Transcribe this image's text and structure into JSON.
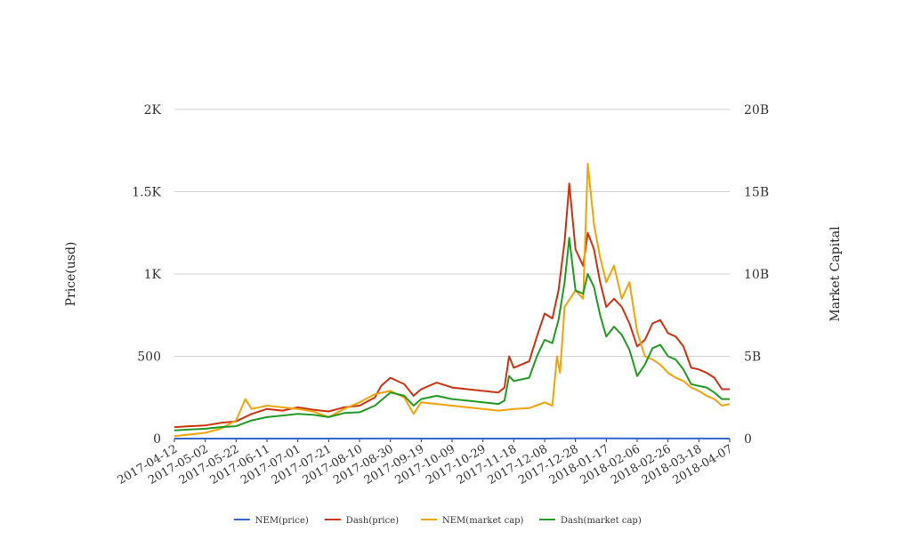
{
  "chart_data": {
    "type": "line",
    "x_labels": [
      "2017-04-12",
      "2017-05-02",
      "2017-05-22",
      "2017-06-11",
      "2017-07-01",
      "2017-07-21",
      "2017-08-10",
      "2017-08-30",
      "2017-09-19",
      "2017-10-09",
      "2017-10-29",
      "2017-11-18",
      "2017-12-08",
      "2017-12-28",
      "2018-01-17",
      "2018-02-06",
      "2018-02-26",
      "2018-03-18",
      "2018-04-07"
    ],
    "y_left": {
      "label": "Price(usd)",
      "min": 0,
      "max": 2000,
      "ticks": [
        0,
        500,
        1000,
        1500,
        2000
      ],
      "tick_labels": [
        "0",
        "500",
        "1K",
        "1.5K",
        "2K"
      ]
    },
    "y_right": {
      "label": "Market Capital",
      "min": 0,
      "max": 20000000000,
      "ticks": [
        0,
        5000000000,
        10000000000,
        15000000000,
        20000000000
      ],
      "tick_labels": [
        "0",
        "5B",
        "10B",
        "15B",
        "20B"
      ]
    },
    "grid": true,
    "legend_position": "bottom",
    "series": [
      {
        "name": "NEM(price)",
        "axis": "left",
        "color": "#3366cc",
        "points": [
          [
            "2017-04-12",
            0.03
          ],
          [
            "2017-05-02",
            0.06
          ],
          [
            "2017-05-22",
            0.18
          ],
          [
            "2017-06-11",
            0.22
          ],
          [
            "2017-07-01",
            0.2
          ],
          [
            "2017-07-21",
            0.15
          ],
          [
            "2017-08-10",
            0.2
          ],
          [
            "2017-08-30",
            0.3
          ],
          [
            "2017-09-19",
            0.2
          ],
          [
            "2017-10-09",
            0.22
          ],
          [
            "2017-10-29",
            0.19
          ],
          [
            "2017-11-18",
            0.2
          ],
          [
            "2017-12-08",
            0.25
          ],
          [
            "2017-12-28",
            1.5
          ],
          [
            "2018-01-04",
            1.8
          ],
          [
            "2018-01-17",
            1.2
          ],
          [
            "2018-02-06",
            0.5
          ],
          [
            "2018-02-26",
            0.4
          ],
          [
            "2018-03-18",
            0.3
          ],
          [
            "2018-04-07",
            0.22
          ]
        ]
      },
      {
        "name": "Dash(price)",
        "axis": "left",
        "color": "#cc3311",
        "points": [
          [
            "2017-04-12",
            70
          ],
          [
            "2017-04-22",
            75
          ],
          [
            "2017-05-02",
            80
          ],
          [
            "2017-05-12",
            95
          ],
          [
            "2017-05-22",
            105
          ],
          [
            "2017-06-01",
            150
          ],
          [
            "2017-06-11",
            180
          ],
          [
            "2017-06-21",
            170
          ],
          [
            "2017-07-01",
            190
          ],
          [
            "2017-07-11",
            175
          ],
          [
            "2017-07-21",
            165
          ],
          [
            "2017-07-31",
            190
          ],
          [
            "2017-08-10",
            200
          ],
          [
            "2017-08-20",
            250
          ],
          [
            "2017-08-24",
            320
          ],
          [
            "2017-08-30",
            370
          ],
          [
            "2017-09-08",
            330
          ],
          [
            "2017-09-14",
            260
          ],
          [
            "2017-09-19",
            300
          ],
          [
            "2017-09-29",
            340
          ],
          [
            "2017-10-09",
            310
          ],
          [
            "2017-10-19",
            300
          ],
          [
            "2017-10-29",
            290
          ],
          [
            "2017-11-08",
            280
          ],
          [
            "2017-11-12",
            310
          ],
          [
            "2017-11-15",
            500
          ],
          [
            "2017-11-18",
            430
          ],
          [
            "2017-11-28",
            470
          ],
          [
            "2017-12-03",
            620
          ],
          [
            "2017-12-08",
            760
          ],
          [
            "2017-12-13",
            730
          ],
          [
            "2017-12-17",
            900
          ],
          [
            "2017-12-21",
            1200
          ],
          [
            "2017-12-24",
            1550
          ],
          [
            "2017-12-28",
            1150
          ],
          [
            "2018-01-02",
            1050
          ],
          [
            "2018-01-05",
            1250
          ],
          [
            "2018-01-09",
            1150
          ],
          [
            "2018-01-13",
            950
          ],
          [
            "2018-01-17",
            800
          ],
          [
            "2018-01-22",
            850
          ],
          [
            "2018-01-27",
            800
          ],
          [
            "2018-02-01",
            700
          ],
          [
            "2018-02-06",
            560
          ],
          [
            "2018-02-11",
            600
          ],
          [
            "2018-02-16",
            700
          ],
          [
            "2018-02-21",
            720
          ],
          [
            "2018-02-26",
            640
          ],
          [
            "2018-03-03",
            620
          ],
          [
            "2018-03-08",
            560
          ],
          [
            "2018-03-13",
            430
          ],
          [
            "2018-03-18",
            420
          ],
          [
            "2018-03-23",
            400
          ],
          [
            "2018-03-28",
            370
          ],
          [
            "2018-04-02",
            300
          ],
          [
            "2018-04-07",
            300
          ]
        ]
      },
      {
        "name": "NEM(market cap)",
        "axis": "right",
        "color": "#f0a30a",
        "points": [
          [
            "2017-04-12",
            150000000
          ],
          [
            "2017-04-22",
            250000000
          ],
          [
            "2017-05-02",
            350000000
          ],
          [
            "2017-05-12",
            600000000
          ],
          [
            "2017-05-22",
            1100000000
          ],
          [
            "2017-05-28",
            2400000000
          ],
          [
            "2017-06-01",
            1800000000
          ],
          [
            "2017-06-11",
            2000000000
          ],
          [
            "2017-06-21",
            1900000000
          ],
          [
            "2017-07-01",
            1800000000
          ],
          [
            "2017-07-11",
            1650000000
          ],
          [
            "2017-07-21",
            1300000000
          ],
          [
            "2017-07-31",
            1800000000
          ],
          [
            "2017-08-10",
            2200000000
          ],
          [
            "2017-08-20",
            2700000000
          ],
          [
            "2017-08-30",
            2900000000
          ],
          [
            "2017-09-08",
            2500000000
          ],
          [
            "2017-09-14",
            1500000000
          ],
          [
            "2017-09-19",
            2200000000
          ],
          [
            "2017-09-29",
            2100000000
          ],
          [
            "2017-10-09",
            2000000000
          ],
          [
            "2017-10-19",
            1900000000
          ],
          [
            "2017-10-29",
            1800000000
          ],
          [
            "2017-11-08",
            1700000000
          ],
          [
            "2017-11-18",
            1800000000
          ],
          [
            "2017-11-28",
            1850000000
          ],
          [
            "2017-12-08",
            2200000000
          ],
          [
            "2017-12-13",
            2000000000
          ],
          [
            "2017-12-16",
            5000000000
          ],
          [
            "2017-12-18",
            4000000000
          ],
          [
            "2017-12-21",
            8000000000
          ],
          [
            "2017-12-28",
            9000000000
          ],
          [
            "2018-01-02",
            8500000000
          ],
          [
            "2018-01-05",
            16700000000
          ],
          [
            "2018-01-09",
            13000000000
          ],
          [
            "2018-01-13",
            11000000000
          ],
          [
            "2018-01-17",
            9500000000
          ],
          [
            "2018-01-22",
            10500000000
          ],
          [
            "2018-01-27",
            8500000000
          ],
          [
            "2018-02-01",
            9500000000
          ],
          [
            "2018-02-06",
            6500000000
          ],
          [
            "2018-02-11",
            5000000000
          ],
          [
            "2018-02-16",
            4800000000
          ],
          [
            "2018-02-21",
            4500000000
          ],
          [
            "2018-02-26",
            4000000000
          ],
          [
            "2018-03-03",
            3700000000
          ],
          [
            "2018-03-08",
            3500000000
          ],
          [
            "2018-03-13",
            3100000000
          ],
          [
            "2018-03-18",
            2900000000
          ],
          [
            "2018-03-23",
            2600000000
          ],
          [
            "2018-03-28",
            2400000000
          ],
          [
            "2018-04-02",
            2000000000
          ],
          [
            "2018-04-07",
            2100000000
          ]
        ]
      },
      {
        "name": "Dash(market cap)",
        "axis": "right",
        "color": "#229922",
        "points": [
          [
            "2017-04-12",
            500000000
          ],
          [
            "2017-04-22",
            550000000
          ],
          [
            "2017-05-02",
            600000000
          ],
          [
            "2017-05-12",
            700000000
          ],
          [
            "2017-05-22",
            750000000
          ],
          [
            "2017-06-01",
            1100000000
          ],
          [
            "2017-06-11",
            1300000000
          ],
          [
            "2017-06-21",
            1400000000
          ],
          [
            "2017-07-01",
            1500000000
          ],
          [
            "2017-07-11",
            1450000000
          ],
          [
            "2017-07-21",
            1300000000
          ],
          [
            "2017-07-31",
            1550000000
          ],
          [
            "2017-08-10",
            1600000000
          ],
          [
            "2017-08-20",
            2000000000
          ],
          [
            "2017-08-30",
            2800000000
          ],
          [
            "2017-09-08",
            2600000000
          ],
          [
            "2017-09-14",
            2000000000
          ],
          [
            "2017-09-19",
            2400000000
          ],
          [
            "2017-09-29",
            2600000000
          ],
          [
            "2017-10-09",
            2400000000
          ],
          [
            "2017-10-19",
            2300000000
          ],
          [
            "2017-10-29",
            2200000000
          ],
          [
            "2017-11-08",
            2100000000
          ],
          [
            "2017-11-12",
            2300000000
          ],
          [
            "2017-11-15",
            3800000000
          ],
          [
            "2017-11-18",
            3500000000
          ],
          [
            "2017-11-28",
            3700000000
          ],
          [
            "2017-12-03",
            5000000000
          ],
          [
            "2017-12-08",
            6000000000
          ],
          [
            "2017-12-13",
            5800000000
          ],
          [
            "2017-12-17",
            7200000000
          ],
          [
            "2017-12-21",
            9500000000
          ],
          [
            "2017-12-24",
            12200000000
          ],
          [
            "2017-12-28",
            9000000000
          ],
          [
            "2018-01-02",
            8800000000
          ],
          [
            "2018-01-05",
            10000000000
          ],
          [
            "2018-01-09",
            9200000000
          ],
          [
            "2018-01-13",
            7500000000
          ],
          [
            "2018-01-17",
            6200000000
          ],
          [
            "2018-01-22",
            6800000000
          ],
          [
            "2018-01-27",
            6300000000
          ],
          [
            "2018-02-01",
            5400000000
          ],
          [
            "2018-02-06",
            3800000000
          ],
          [
            "2018-02-11",
            4500000000
          ],
          [
            "2018-02-16",
            5500000000
          ],
          [
            "2018-02-21",
            5700000000
          ],
          [
            "2018-02-26",
            5000000000
          ],
          [
            "2018-03-03",
            4800000000
          ],
          [
            "2018-03-08",
            4200000000
          ],
          [
            "2018-03-13",
            3300000000
          ],
          [
            "2018-03-18",
            3200000000
          ],
          [
            "2018-03-23",
            3100000000
          ],
          [
            "2018-03-28",
            2800000000
          ],
          [
            "2018-04-02",
            2400000000
          ],
          [
            "2018-04-07",
            2400000000
          ]
        ]
      }
    ]
  }
}
